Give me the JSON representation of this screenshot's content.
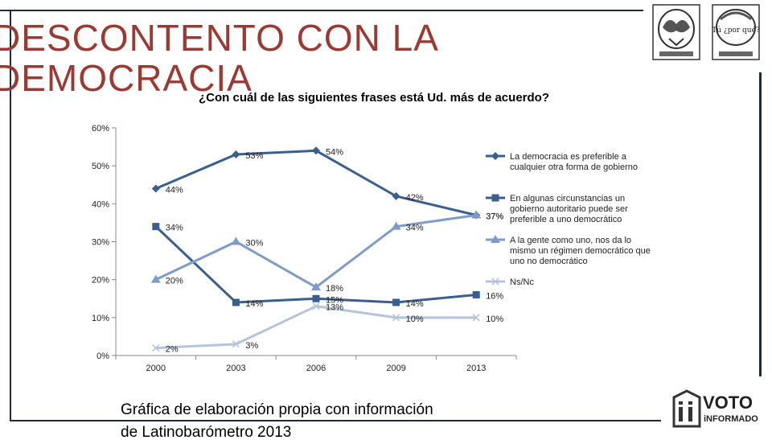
{
  "slide": {
    "title": "DESCONTENTO CON LA DEMOCRACIA",
    "footnote": "Gráfica de elaboración propia con información de Latinobarómetro 2013"
  },
  "logos": {
    "seal_right_text": "Tú ¿por qué?",
    "voto_line1": "VOTO",
    "voto_line2": "iNFORMADO"
  },
  "colors": {
    "title": "#9b3a32",
    "frame": "#1f2a44",
    "series": [
      "#3a5f8f",
      "#3a5f8f",
      "#7f9cc8",
      "#b4c4dc"
    ]
  },
  "chart_data": {
    "type": "line",
    "title": "¿Con cuál de las siguientes frases está Ud. más de acuerdo?",
    "categories": [
      "2000",
      "2003",
      "2006",
      "2009",
      "2013"
    ],
    "ylim": [
      0,
      60
    ],
    "yticks": [
      "0%",
      "10%",
      "20%",
      "30%",
      "40%",
      "50%",
      "60%"
    ],
    "xlabel": "",
    "ylabel": "",
    "legend_position": "right",
    "series": [
      {
        "name": "La democracia es preferible a cualquier otra forma de gobierno",
        "marker": "diamond",
        "values": [
          44,
          53,
          54,
          42,
          37
        ],
        "labels": [
          "44%",
          "53%",
          "54%",
          "42%",
          "37%"
        ]
      },
      {
        "name": "En algunas circunstancias un gobierno autoritario puede ser preferible a uno democrático",
        "marker": "square",
        "values": [
          34,
          14,
          15,
          14,
          16
        ],
        "labels": [
          "34%",
          "14%",
          "15%",
          "14%",
          "16%"
        ]
      },
      {
        "name": "A la gente como uno, nos da lo mismo un régimen democrático que uno no democrático",
        "marker": "triangle",
        "values": [
          20,
          30,
          18,
          34,
          37
        ],
        "labels": [
          "20%",
          "30%",
          "18%",
          "34%",
          "37%"
        ]
      },
      {
        "name": "Ns/Nc",
        "marker": "x",
        "values": [
          2,
          3,
          13,
          10,
          10
        ],
        "labels": [
          "2%",
          "3%",
          "13%",
          "10%",
          "10%"
        ]
      }
    ]
  }
}
